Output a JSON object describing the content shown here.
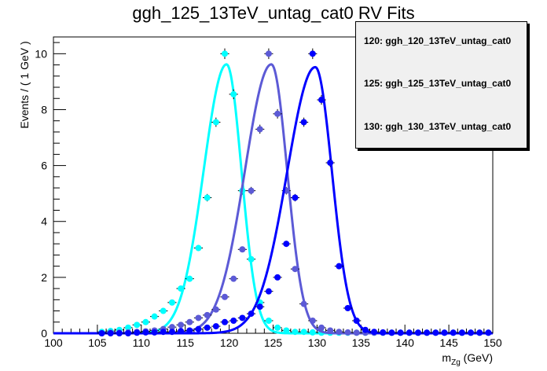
{
  "chart_data": {
    "type": "line",
    "title": "ggh_125_13TeV_untag_cat0 RV Fits",
    "xlabel_main": "m",
    "xlabel_sub": "Zg",
    "xlabel_unit": "(GeV)",
    "ylabel": "Events / ( 1 GeV )",
    "xlim": [
      100,
      150
    ],
    "ylim": [
      0,
      10.6
    ],
    "x_ticks": [
      "100",
      "105",
      "110",
      "115",
      "120",
      "125",
      "130",
      "135",
      "140",
      "145",
      "150"
    ],
    "y_ticks": [
      "0",
      "2",
      "4",
      "6",
      "8",
      "10"
    ],
    "legend_position": "top-right",
    "series": [
      {
        "name": "120: ggh_120_13TeV_untag_cat0",
        "color": "#00ffff",
        "fit": {
          "mean": 119.7,
          "sigma_left": 2.6,
          "sigma_right": 1.7,
          "peak": 9.62
        },
        "x": [
          105.5,
          106.5,
          107.5,
          108.5,
          109.5,
          110.5,
          111.5,
          112.5,
          113.5,
          114.5,
          115.5,
          116.5,
          117.5,
          118.5,
          119.5,
          120.5,
          121.5,
          122.5,
          123.5,
          124.5,
          125.5,
          126.5,
          127.5,
          128.5,
          129.5,
          130.5,
          131.5,
          132.5,
          133.5,
          134.5,
          135.5,
          136.5,
          137.5,
          138.5,
          139.5,
          140.5,
          141.5,
          142.5,
          143.5,
          144.5,
          145.5,
          146.5,
          147.5,
          148.5,
          149.5
        ],
        "y": [
          0.05,
          0.08,
          0.12,
          0.2,
          0.3,
          0.4,
          0.6,
          0.8,
          1.1,
          1.6,
          1.95,
          3.05,
          4.85,
          7.55,
          10.0,
          8.55,
          5.1,
          2.65,
          1.1,
          0.45,
          0.2,
          0.1,
          0.05,
          0.05,
          0.03,
          0.02,
          0.02,
          0.02,
          0.02,
          0.02,
          0.02,
          0.02,
          0.02,
          0.02,
          0.02,
          0.02,
          0.02,
          0.02,
          0.02,
          0.02,
          0.02,
          0.02,
          0.02,
          0.02,
          0.02
        ]
      },
      {
        "name": "125: ggh_125_13TeV_untag_cat0",
        "color": "#5c5ad6",
        "fit": {
          "mean": 124.8,
          "sigma_left": 3.0,
          "sigma_right": 1.8,
          "peak": 9.62
        },
        "x": [
          105.5,
          106.5,
          107.5,
          108.5,
          109.5,
          110.5,
          111.5,
          112.5,
          113.5,
          114.5,
          115.5,
          116.5,
          117.5,
          118.5,
          119.5,
          120.5,
          121.5,
          122.5,
          123.5,
          124.5,
          125.5,
          126.5,
          127.5,
          128.5,
          129.5,
          130.5,
          131.5,
          132.5,
          133.5,
          134.5,
          135.5,
          136.5,
          137.5,
          138.5,
          139.5,
          140.5,
          141.5,
          142.5,
          143.5,
          144.5,
          145.5,
          146.5,
          147.5,
          148.5,
          149.5
        ],
        "y": [
          0.0,
          0.02,
          0.02,
          0.03,
          0.05,
          0.07,
          0.1,
          0.15,
          0.22,
          0.3,
          0.4,
          0.55,
          0.65,
          0.85,
          1.3,
          1.95,
          3.0,
          5.1,
          7.3,
          10.0,
          7.85,
          5.1,
          2.3,
          1.05,
          0.45,
          0.2,
          0.1,
          0.05,
          0.03,
          0.02,
          0.02,
          0.02,
          0.02,
          0.02,
          0.02,
          0.02,
          0.02,
          0.02,
          0.02,
          0.02,
          0.02,
          0.02,
          0.02,
          0.02,
          0.02
        ]
      },
      {
        "name": "130: ggh_130_13TeV_untag_cat0",
        "color": "#0000ff",
        "fit": {
          "mean": 129.8,
          "sigma_left": 3.2,
          "sigma_right": 1.9,
          "peak": 9.52
        },
        "x": [
          105.5,
          106.5,
          107.5,
          108.5,
          109.5,
          110.5,
          111.5,
          112.5,
          113.5,
          114.5,
          115.5,
          116.5,
          117.5,
          118.5,
          119.5,
          120.5,
          121.5,
          122.5,
          123.5,
          124.5,
          125.5,
          126.5,
          127.5,
          128.5,
          129.5,
          130.5,
          131.5,
          132.5,
          133.5,
          134.5,
          135.5,
          136.5,
          137.5,
          138.5,
          139.5,
          140.5,
          141.5,
          142.5,
          143.5,
          144.5,
          145.5,
          146.5,
          147.5,
          148.5,
          149.5
        ],
        "y": [
          0.0,
          0.0,
          0.0,
          0.0,
          0.02,
          0.03,
          0.03,
          0.05,
          0.05,
          0.08,
          0.1,
          0.15,
          0.2,
          0.25,
          0.4,
          0.45,
          0.55,
          0.7,
          0.95,
          1.5,
          2.0,
          3.2,
          4.85,
          7.55,
          10.0,
          8.35,
          6.1,
          2.4,
          0.9,
          0.45,
          0.12,
          0.05,
          0.03,
          0.02,
          0.02,
          0.02,
          0.02,
          0.02,
          0.02,
          0.02,
          0.02,
          0.02,
          0.02,
          0.02,
          0.02
        ]
      }
    ]
  }
}
